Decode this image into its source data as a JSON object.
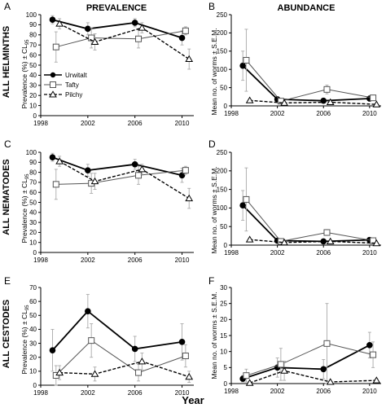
{
  "figure": {
    "col_titles": [
      "PREVALENCE",
      "ABUNDANCE"
    ],
    "row_titles": [
      "ALL  HELMINTHS",
      "ALL  NEMATODES",
      "ALL  CESTODES"
    ],
    "panel_letters": [
      "A",
      "B",
      "C",
      "D",
      "E",
      "F"
    ],
    "xlabel": "Year",
    "ylabel_prev_main": "Prevalence (%) ± CL",
    "ylabel_prev_sub": "95",
    "ylabel_abund": "Mean no. of worms ± S.E.M.",
    "legend": [
      "Urwitalt",
      "Tafty",
      "Pilchy"
    ]
  },
  "chart_data": [
    {
      "panel": "A",
      "type": "line",
      "title": "PREVALENCE",
      "ylabel": "Prevalence (%) ± CL95",
      "xlim": [
        1998,
        2011
      ],
      "xticks": [
        1998,
        2002,
        2006,
        2010
      ],
      "ylim": [
        0,
        100
      ],
      "yticks": [
        0,
        10,
        20,
        30,
        40,
        50,
        60,
        70,
        80,
        90,
        100
      ],
      "series": [
        {
          "name": "Urwitalt",
          "x": [
            1999,
            2002,
            2006,
            2010
          ],
          "y": [
            95,
            86,
            92,
            77
          ],
          "err": [
            4,
            6,
            4,
            7
          ]
        },
        {
          "name": "Tafty",
          "x": [
            1999.3,
            2002.3,
            2006.3,
            2010.3
          ],
          "y": [
            68,
            77,
            76,
            84
          ],
          "err": [
            15,
            10,
            9,
            4
          ]
        },
        {
          "name": "Pilchy",
          "x": [
            1999.6,
            2002.6,
            2006.6,
            2010.6
          ],
          "y": [
            91,
            73,
            87,
            56
          ],
          "err": [
            5,
            8,
            5,
            10
          ]
        }
      ]
    },
    {
      "panel": "B",
      "type": "line",
      "title": "ABUNDANCE",
      "ylabel": "Mean no. of worms ± S.E.M.",
      "xlim": [
        1998,
        2011
      ],
      "xticks": [
        1998,
        2002,
        2006,
        2010
      ],
      "ylim": [
        0,
        250
      ],
      "yticks": [
        0,
        50,
        100,
        150,
        200,
        250
      ],
      "series": [
        {
          "name": "Urwitalt",
          "x": [
            1999,
            2002,
            2006,
            2010
          ],
          "y": [
            110,
            18,
            14,
            20
          ],
          "err": [
            40,
            4,
            3,
            4
          ]
        },
        {
          "name": "Tafty",
          "x": [
            1999.3,
            2002.3,
            2006.3,
            2010.3
          ],
          "y": [
            125,
            13,
            45,
            22
          ],
          "err": [
            85,
            3,
            12,
            4
          ]
        },
        {
          "name": "Pilchy",
          "x": [
            1999.6,
            2002.6,
            2006.6,
            2010.6
          ],
          "y": [
            15,
            8,
            10,
            4
          ],
          "err": [
            3,
            2,
            3,
            1
          ]
        }
      ]
    },
    {
      "panel": "C",
      "type": "line",
      "ylabel": "Prevalence (%) ± CL95",
      "xlim": [
        1998,
        2011
      ],
      "xticks": [
        1998,
        2002,
        2006,
        2010
      ],
      "ylim": [
        0,
        100
      ],
      "yticks": [
        0,
        10,
        20,
        30,
        40,
        50,
        60,
        70,
        80,
        90,
        100
      ],
      "series": [
        {
          "name": "Urwitalt",
          "x": [
            1999,
            2002,
            2006,
            2010
          ],
          "y": [
            95,
            82,
            88,
            77
          ],
          "err": [
            4,
            6,
            5,
            7
          ]
        },
        {
          "name": "Tafty",
          "x": [
            1999.3,
            2002.3,
            2006.3,
            2010.3
          ],
          "y": [
            68,
            69,
            77,
            82
          ],
          "err": [
            15,
            10,
            9,
            4
          ]
        },
        {
          "name": "Pilchy",
          "x": [
            1999.6,
            2002.6,
            2006.6,
            2010.6
          ],
          "y": [
            91,
            71,
            83,
            54
          ],
          "err": [
            5,
            8,
            5,
            10
          ]
        }
      ]
    },
    {
      "panel": "D",
      "type": "line",
      "ylabel": "Mean no. of worms ± S.E.M.",
      "xlim": [
        1998,
        2011
      ],
      "xticks": [
        1998,
        2002,
        2006,
        2010
      ],
      "ylim": [
        0,
        250
      ],
      "yticks": [
        0,
        50,
        100,
        150,
        200,
        250
      ],
      "series": [
        {
          "name": "Urwitalt",
          "x": [
            1999,
            2002,
            2006,
            2010
          ],
          "y": [
            107,
            12,
            10,
            14
          ],
          "err": [
            40,
            3,
            3,
            3
          ]
        },
        {
          "name": "Tafty",
          "x": [
            1999.3,
            2002.3,
            2006.3,
            2010.3
          ],
          "y": [
            123,
            10,
            34,
            12
          ],
          "err": [
            85,
            3,
            8,
            3
          ]
        },
        {
          "name": "Pilchy",
          "x": [
            1999.6,
            2002.6,
            2006.6,
            2010.6
          ],
          "y": [
            15,
            7,
            10,
            5
          ],
          "err": [
            3,
            2,
            3,
            1
          ]
        }
      ]
    },
    {
      "panel": "E",
      "type": "line",
      "ylabel": "Prevalence (%) ± CL95",
      "xlim": [
        1998,
        2011
      ],
      "xticks": [
        1998,
        2002,
        2006,
        2010
      ],
      "ylim": [
        0,
        70
      ],
      "yticks": [
        0,
        10,
        20,
        30,
        40,
        50,
        60,
        70
      ],
      "series": [
        {
          "name": "Urwitalt",
          "x": [
            1999,
            2002,
            2006,
            2010
          ],
          "y": [
            25,
            53,
            26,
            31
          ],
          "err": [
            15,
            12,
            9,
            13
          ]
        },
        {
          "name": "Tafty",
          "x": [
            1999.3,
            2002.3,
            2006.3,
            2010.3
          ],
          "y": [
            7,
            32,
            9,
            21
          ],
          "err": [
            7,
            12,
            6,
            8
          ]
        },
        {
          "name": "Pilchy",
          "x": [
            1999.6,
            2002.6,
            2006.6,
            2010.6
          ],
          "y": [
            9,
            8,
            17,
            6
          ],
          "err": [
            5,
            5,
            6,
            4
          ]
        }
      ]
    },
    {
      "panel": "F",
      "type": "line",
      "ylabel": "Mean no. of worms ± S.E.M.",
      "xlim": [
        1998,
        2011
      ],
      "xticks": [
        1998,
        2002,
        2006,
        2010
      ],
      "ylim": [
        0,
        30
      ],
      "yticks": [
        0,
        5,
        10,
        15,
        20,
        25,
        30
      ],
      "series": [
        {
          "name": "Urwitalt",
          "x": [
            1999,
            2002,
            2006,
            2010
          ],
          "y": [
            1.5,
            5,
            4.5,
            12
          ],
          "err": [
            1,
            3,
            3,
            4
          ]
        },
        {
          "name": "Tafty",
          "x": [
            1999.3,
            2002.3,
            2006.3,
            2010.3
          ],
          "y": [
            2.5,
            6,
            12.5,
            9
          ],
          "err": [
            2,
            5,
            12.5,
            4
          ]
        },
        {
          "name": "Pilchy",
          "x": [
            1999.6,
            2002.6,
            2006.6,
            2010.6
          ],
          "y": [
            0.2,
            4,
            0.5,
            1
          ],
          "err": [
            0.3,
            3,
            0.5,
            0.5
          ]
        }
      ]
    }
  ]
}
